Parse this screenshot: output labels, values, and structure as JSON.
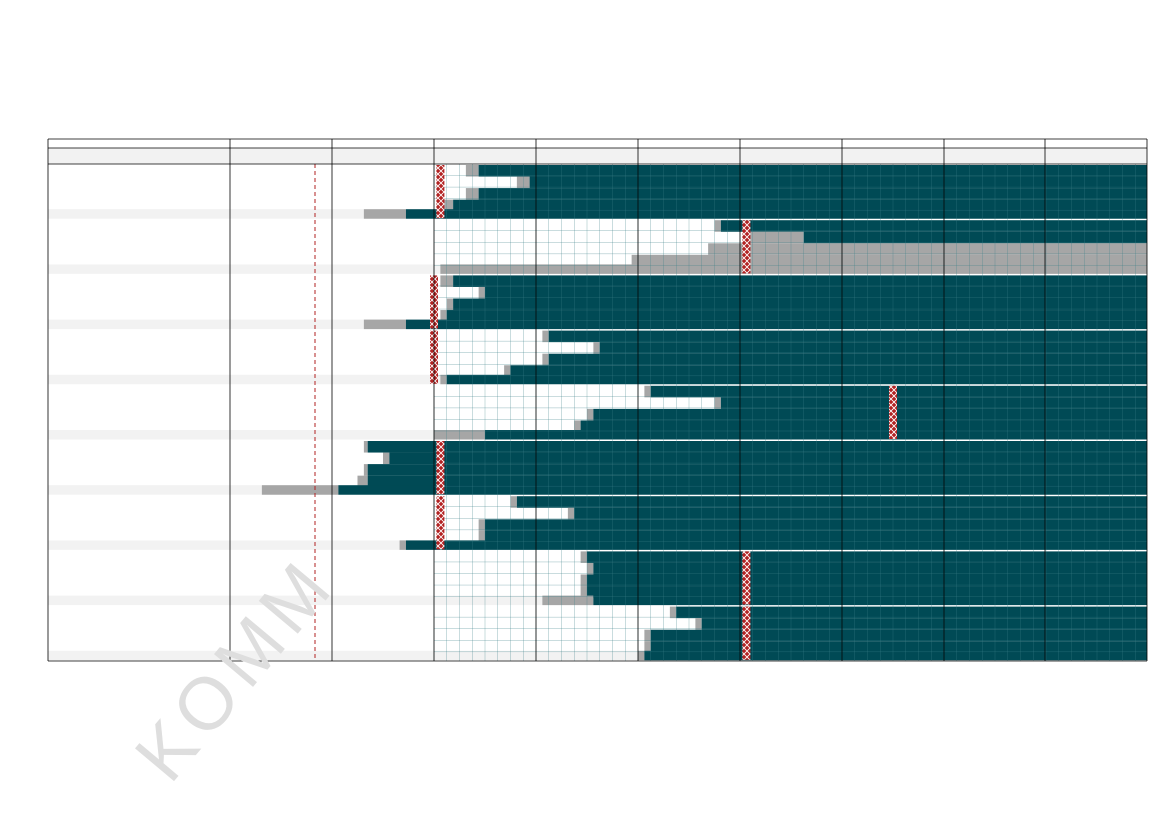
{
  "watermark": "KOMM",
  "colors": {
    "done": "#004a55",
    "planned": "#a6a6a6",
    "marker": "#b22222",
    "stripe": "#f2f2f2",
    "border": "#000000",
    "grid": "#3a7f88"
  },
  "chart_data": {
    "type": "gantt",
    "time_units": 75,
    "units_per_column": 8,
    "columns": 9,
    "rows_per_group": 5,
    "groups": [
      {
        "marker": 0.5,
        "rows": [
          {
            "gray": [
              2.5,
              3.5
            ],
            "done": [
              3.5,
              75
            ]
          },
          {
            "gray": [
              6.5,
              7.5
            ],
            "done": [
              7.5,
              75
            ]
          },
          {
            "gray": [
              2.5,
              3.5
            ],
            "done": [
              3.5,
              75
            ]
          },
          {
            "gray": [
              0.5,
              1.5
            ],
            "done": [
              1.5,
              75
            ]
          },
          {
            "gray": [
              -5.5,
              -2.2
            ],
            "done": [
              -2.2,
              75
            ]
          }
        ]
      },
      {
        "marker": 24.5,
        "rows": [
          {
            "gray": [
              22.0,
              22.5
            ],
            "done": [
              22.5,
              75
            ]
          },
          {
            "gray": [
              24.5,
              29.0
            ],
            "done": [
              29.0,
              75
            ]
          },
          {
            "gray": [
              21.5,
              75
            ]
          },
          {
            "gray": [
              15.5,
              75
            ]
          },
          {
            "gray": [
              0.5,
              75
            ]
          }
        ]
      },
      {
        "marker": 0.0,
        "rows": [
          {
            "gray": [
              0.5,
              1.5
            ],
            "done": [
              1.5,
              75
            ]
          },
          {
            "gray": [
              3.5,
              4.0
            ],
            "done": [
              4.0,
              75
            ]
          },
          {
            "gray": [
              1.0,
              1.5
            ],
            "done": [
              1.5,
              75
            ]
          },
          {
            "gray": [
              0.5,
              1.0
            ],
            "done": [
              1.0,
              75
            ]
          },
          {
            "gray": [
              -5.5,
              -2.2
            ],
            "done": [
              -2.2,
              75
            ]
          }
        ]
      },
      {
        "marker": 0.0,
        "rows": [
          {
            "gray": [
              8.5,
              9.0
            ],
            "done": [
              9.0,
              75
            ]
          },
          {
            "gray": [
              12.5,
              13.0
            ],
            "done": [
              13.0,
              75
            ]
          },
          {
            "gray": [
              8.5,
              9.0
            ],
            "done": [
              9.0,
              75
            ]
          },
          {
            "gray": [
              5.5,
              6.0
            ],
            "done": [
              6.0,
              75
            ]
          },
          {
            "gray": [
              0.5,
              1.0
            ],
            "done": [
              1.0,
              75
            ]
          }
        ]
      },
      {
        "marker": 36.0,
        "rows": [
          {
            "gray": [
              16.5,
              17.0
            ],
            "done": [
              17.0,
              75
            ]
          },
          {
            "gray": [
              22.0,
              22.5
            ],
            "done": [
              22.5,
              75
            ]
          },
          {
            "gray": [
              12.0,
              12.5
            ],
            "done": [
              12.5,
              75
            ]
          },
          {
            "gray": [
              11.0,
              11.5
            ],
            "done": [
              11.5,
              75
            ]
          },
          {
            "gray": [
              0.0,
              4.0
            ],
            "done": [
              4.0,
              75
            ]
          }
        ]
      },
      {
        "marker": 0.5,
        "rows": [
          {
            "gray": [
              -5.5,
              -5.2
            ],
            "done": [
              -5.2,
              75
            ]
          },
          {
            "gray": [
              -4.0,
              -3.5
            ],
            "done": [
              -3.5,
              75
            ]
          },
          {
            "gray": [
              -5.5,
              -5.2
            ],
            "done": [
              -5.2,
              75
            ]
          },
          {
            "gray": [
              -6.0,
              -5.2
            ],
            "done": [
              -5.2,
              75
            ]
          },
          {
            "gray": [
              -13.5,
              -7.5
            ],
            "done": [
              -7.5,
              75
            ]
          }
        ]
      },
      {
        "marker": 0.5,
        "rows": [
          {
            "gray": [
              6.0,
              6.5
            ],
            "done": [
              6.5,
              75
            ]
          },
          {
            "gray": [
              10.5,
              11.0
            ],
            "done": [
              11.0,
              75
            ]
          },
          {
            "gray": [
              3.5,
              4.0
            ],
            "done": [
              4.0,
              75
            ]
          },
          {
            "gray": [
              3.5,
              4.0
            ],
            "done": [
              4.0,
              75
            ]
          },
          {
            "gray": [
              -2.7,
              -2.2
            ],
            "done": [
              -2.2,
              75
            ]
          }
        ]
      },
      {
        "marker": 24.5,
        "rows": [
          {
            "gray": [
              11.5,
              12.0
            ],
            "done": [
              12.0,
              75
            ]
          },
          {
            "gray": [
              12.0,
              12.5
            ],
            "done": [
              12.5,
              75
            ]
          },
          {
            "gray": [
              11.5,
              12.0
            ],
            "done": [
              12.0,
              75
            ]
          },
          {
            "gray": [
              11.5,
              12.0
            ],
            "done": [
              12.0,
              75
            ]
          },
          {
            "gray": [
              8.5,
              12.5
            ],
            "done": [
              12.5,
              75
            ]
          }
        ]
      },
      {
        "marker": 24.5,
        "rows": [
          {
            "gray": [
              18.5,
              19.0
            ],
            "done": [
              19.0,
              75
            ]
          },
          {
            "gray": [
              20.5,
              21.0
            ],
            "done": [
              21.0,
              75
            ]
          },
          {
            "gray": [
              16.5,
              17.0
            ],
            "done": [
              17.0,
              75
            ]
          },
          {
            "gray": [
              16.5,
              17.0
            ],
            "done": [
              17.0,
              75
            ]
          },
          {
            "gray": [
              16.0,
              16.5
            ],
            "done": [
              16.5,
              75
            ]
          }
        ]
      }
    ]
  }
}
